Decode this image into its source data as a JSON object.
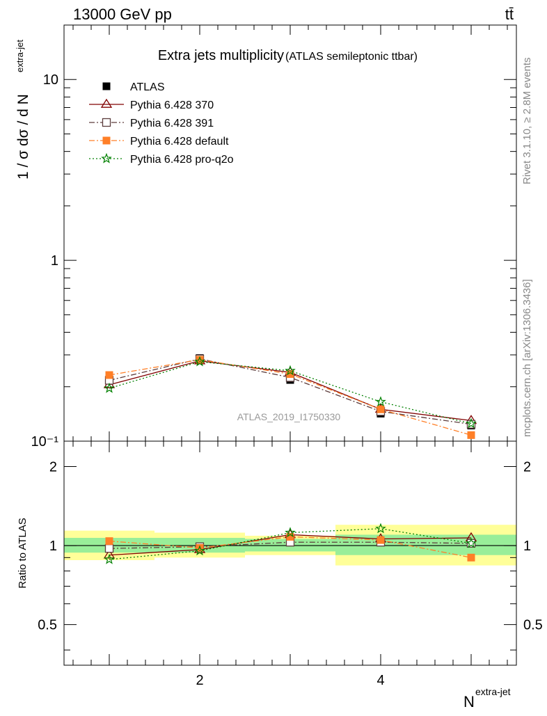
{
  "header": {
    "left": "13000 GeV pp",
    "right": "tt̄"
  },
  "side_labels": {
    "rivet": "Rivet 3.1.10, ≥ 2.8M events",
    "mcplots": "mcplots.cern.ch [arXiv:1306.3436]"
  },
  "chart_data": [
    {
      "type": "line",
      "title": "Extra jets multiplicity",
      "subtitle": "(ATLAS semileptonic ttbar)",
      "watermark": "ATLAS_2019_I1750330",
      "xlabel": "N^extra-jet",
      "ylabel": "1 / σ dσ / d N^extra-jet",
      "yscale": "log",
      "xlim": [
        0.5,
        5.5
      ],
      "ylim": [
        0.1,
        20
      ],
      "x_ticklabels": [
        "2",
        "4"
      ],
      "y_ticklabels": [
        "10⁻¹",
        "1",
        "10"
      ],
      "legend_position": "top-left",
      "x": [
        1,
        2,
        3,
        4,
        5
      ],
      "series": [
        {
          "name": "ATLAS",
          "color": "#000000",
          "marker": "square-filled",
          "style": "none",
          "values": [
            0.222,
            0.288,
            0.218,
            0.142,
            0.122
          ]
        },
        {
          "name": "Pythia 6.428 370",
          "color": "#800000",
          "marker": "triangle-open",
          "style": "solid",
          "values": [
            0.205,
            0.278,
            0.24,
            0.15,
            0.13
          ]
        },
        {
          "name": "Pythia 6.428 391",
          "color": "#5c3c3c",
          "marker": "square-open",
          "style": "dashdot",
          "values": [
            0.217,
            0.285,
            0.225,
            0.146,
            0.124
          ]
        },
        {
          "name": "Pythia 6.428 default",
          "color": "#ff7f27",
          "marker": "square-filled",
          "style": "dashdot",
          "values": [
            0.232,
            0.282,
            0.235,
            0.15,
            0.108
          ]
        },
        {
          "name": "Pythia 6.428 pro-q2o",
          "color": "#008000",
          "marker": "star",
          "style": "dotted",
          "values": [
            0.196,
            0.275,
            0.245,
            0.165,
            0.125
          ]
        }
      ]
    },
    {
      "type": "line",
      "ylabel": "Ratio to ATLAS",
      "ylim": [
        0.35,
        2.5
      ],
      "y_ticklabels": [
        "0.5",
        "1",
        "2"
      ],
      "bands": {
        "bin_edges": [
          0.5,
          1.5,
          2.5,
          3.5,
          4.5,
          5.5
        ],
        "inner": [
          [
            0.94,
            1.07
          ],
          [
            0.94,
            1.07
          ],
          [
            0.95,
            1.06
          ],
          [
            0.92,
            1.1
          ],
          [
            0.92,
            1.1
          ]
        ],
        "outer": [
          [
            0.88,
            1.14
          ],
          [
            0.9,
            1.12
          ],
          [
            0.92,
            1.09
          ],
          [
            0.84,
            1.2
          ],
          [
            0.84,
            1.2
          ]
        ],
        "inner_color": "#99ee99",
        "outer_color": "#ffff99"
      },
      "x": [
        1,
        2,
        3,
        4,
        5
      ],
      "series": [
        {
          "name": "Pythia 6.428 370",
          "values": [
            0.92,
            0.965,
            1.1,
            1.06,
            1.07
          ]
        },
        {
          "name": "Pythia 6.428 391",
          "values": [
            0.975,
            0.99,
            1.03,
            1.03,
            1.02
          ]
        },
        {
          "name": "Pythia 6.428 default",
          "values": [
            1.04,
            0.98,
            1.08,
            1.05,
            0.9
          ]
        },
        {
          "name": "Pythia 6.428 pro-q2o",
          "values": [
            0.885,
            0.955,
            1.12,
            1.16,
            1.02
          ]
        }
      ]
    }
  ]
}
